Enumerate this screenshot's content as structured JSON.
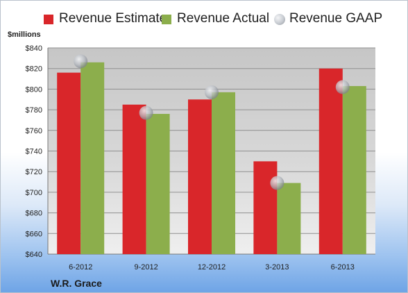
{
  "chart_data": {
    "type": "bar",
    "ylabel": "$millions",
    "company": "W.R. Grace",
    "categories": [
      "6-2012",
      "9-2012",
      "12-2012",
      "3-2013",
      "6-2013"
    ],
    "series": [
      {
        "name": "Revenue Estimate",
        "type": "bar",
        "color": "#d9262a",
        "values": [
          816,
          785,
          790,
          730,
          820
        ]
      },
      {
        "name": "Revenue Actual",
        "type": "bar",
        "color": "#8cae4c",
        "values": [
          826,
          776,
          797,
          709,
          803
        ]
      },
      {
        "name": "Revenue GAAP",
        "type": "marker",
        "color": "#a9aeb6",
        "values": [
          827,
          777,
          797,
          709,
          802
        ]
      }
    ],
    "ylim": [
      640,
      840
    ],
    "yticks": [
      640,
      660,
      680,
      700,
      720,
      740,
      760,
      780,
      800,
      820,
      840
    ],
    "ytick_labels": [
      "$640",
      "$660",
      "$680",
      "$700",
      "$720",
      "$740",
      "$760",
      "$780",
      "$800",
      "$820",
      "$840"
    ],
    "grid": true,
    "legend_position": "top"
  }
}
